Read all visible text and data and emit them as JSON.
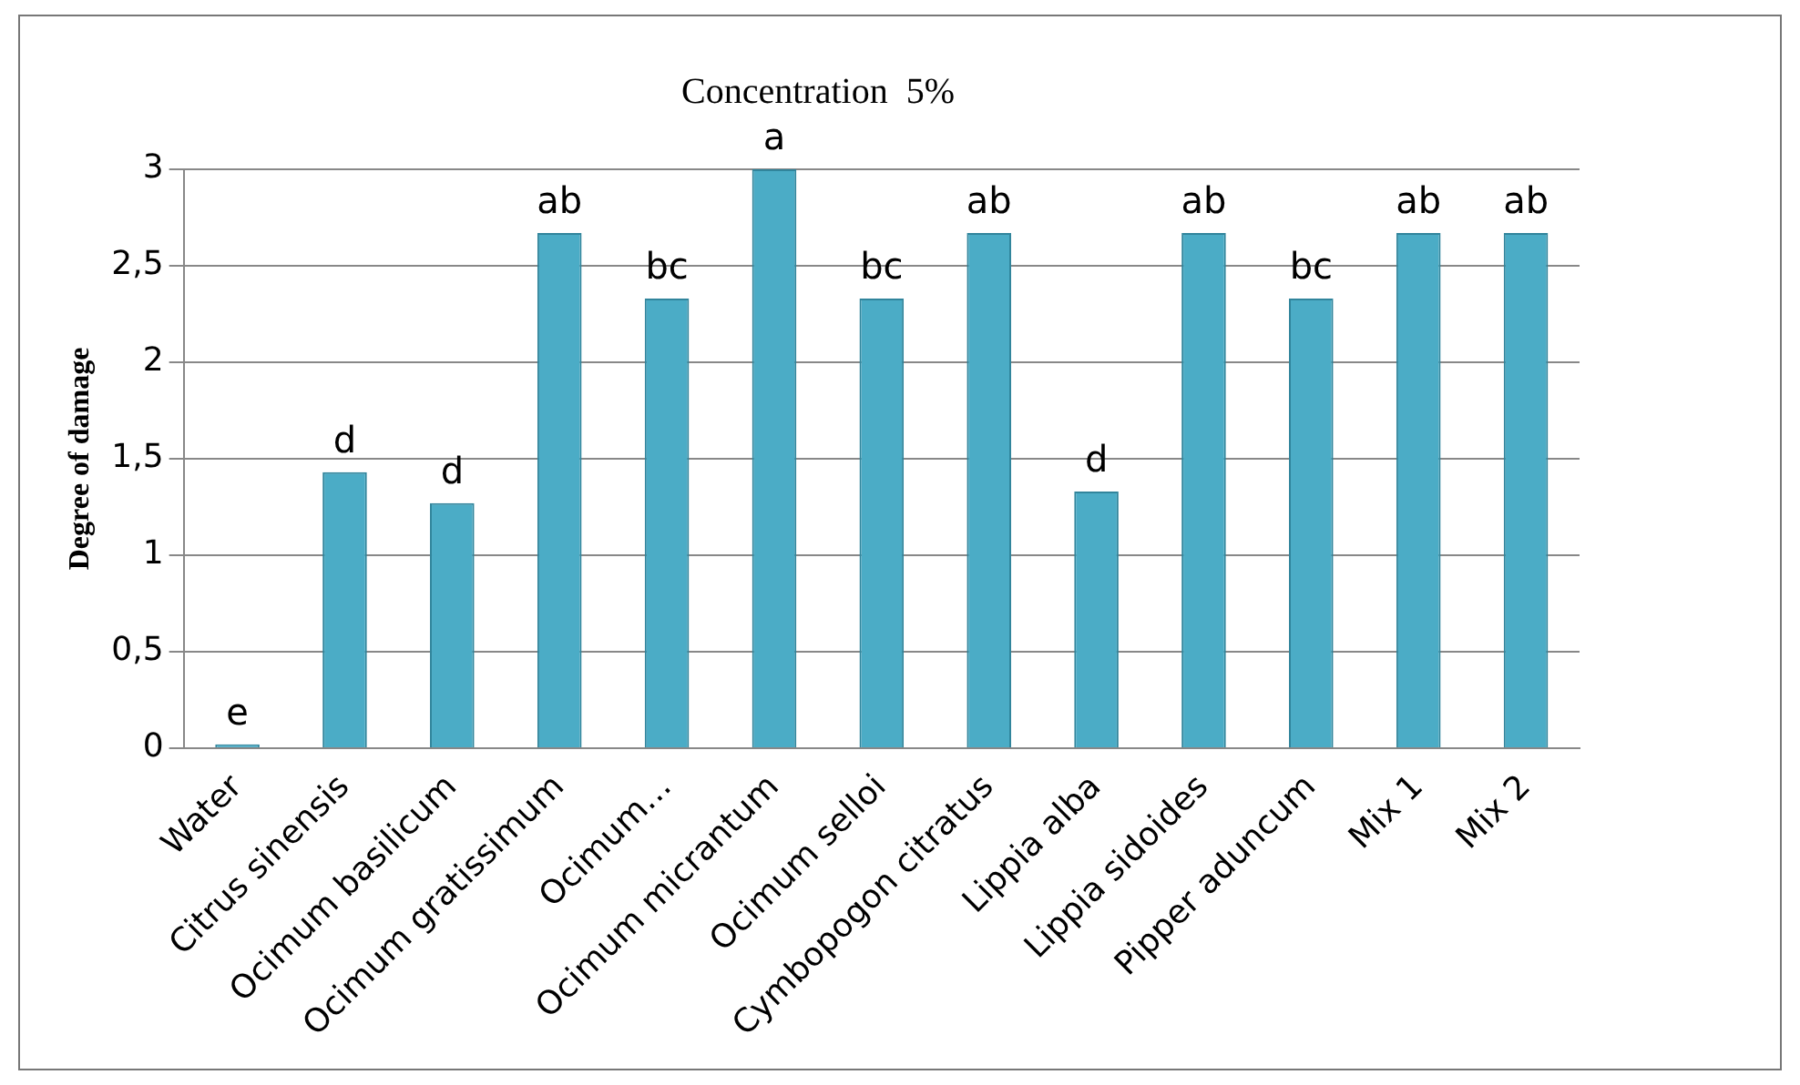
{
  "chart_data": {
    "type": "bar",
    "title": "Concentration  5%",
    "ylabel": "Degree of damage",
    "categories": [
      "Water",
      "Citrus sinensis",
      "Ocimum basilicum",
      "Ocimum gratissimum",
      "Ocimum…",
      "Ocimum micrantum",
      "Ocimum selloi",
      "Cymbopogon citratus",
      "Lippia alba",
      "Lippia sidoides",
      "Pipper aduncum",
      "Mix 1",
      "Mix 2"
    ],
    "values": [
      0.02,
      1.43,
      1.27,
      2.67,
      2.33,
      3,
      2.33,
      2.67,
      1.33,
      2.67,
      2.33,
      2.67,
      2.67
    ],
    "color": "#4bacc6",
    "ylim": [
      0,
      3
    ],
    "yticks": [
      0,
      {
        "value": 0.5,
        "label": "0,5"
      },
      1,
      {
        "value": 1.5,
        "label": "1,5"
      },
      2,
      {
        "value": 2.5,
        "label": "2,5"
      },
      3
    ],
    "grid": "y",
    "legend": false,
    "annotations": [
      {
        "text": "e",
        "x": "Water",
        "y": 0.02
      },
      {
        "text": "d",
        "x": "Citrus sinensis",
        "y": 1.43
      },
      {
        "text": "d",
        "x": "Ocimum basilicum",
        "y": 1.27
      },
      {
        "text": "ab",
        "x": "Ocimum gratissimum",
        "y": 2.67
      },
      {
        "text": "bc",
        "x": "Ocimum…",
        "y": 2.33
      },
      {
        "text": "a",
        "x": "Ocimum micrantum",
        "y": 3
      },
      {
        "text": "bc",
        "x": "Ocimum selloi",
        "y": 2.33
      },
      {
        "text": "ab",
        "x": "Cymbopogon citratus",
        "y": 2.67
      },
      {
        "text": "d",
        "x": "Lippia alba",
        "y": 1.33
      },
      {
        "text": "ab",
        "x": "Lippia sidoides",
        "y": 2.67
      },
      {
        "text": "bc",
        "x": "Pipper aduncum",
        "y": 2.33
      },
      {
        "text": "ab",
        "x": "Mix 1",
        "y": 2.67
      },
      {
        "text": "ab",
        "x": "Mix 2",
        "y": 2.67
      }
    ]
  }
}
